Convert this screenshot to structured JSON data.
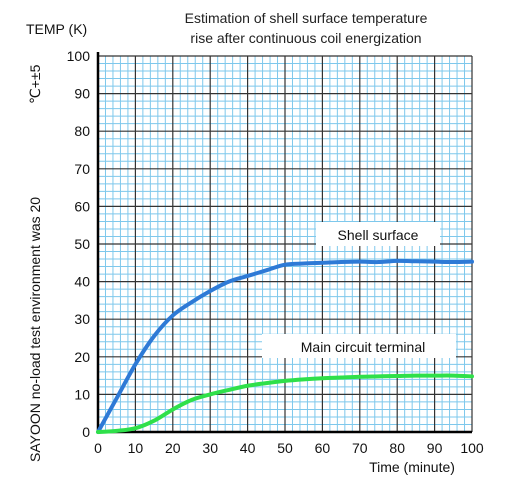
{
  "chart_data": {
    "type": "line",
    "title_lines": [
      "Estimation of shell surface temperature",
      "rise after continuous coil energization"
    ],
    "ylabel": "TEMP (K)",
    "xlabel": "Time (minute)",
    "side_note": "SAYOON no-load test environment was 20",
    "side_note_unit": "℃+±5",
    "xlim": [
      0,
      100
    ],
    "ylim": [
      0,
      100
    ],
    "x_ticks": [
      0,
      10,
      20,
      30,
      40,
      50,
      60,
      70,
      80,
      90,
      100
    ],
    "y_ticks": [
      0,
      10,
      20,
      30,
      40,
      50,
      60,
      70,
      80,
      90,
      100
    ],
    "grid": true,
    "colors": {
      "major_grid": "#333333",
      "minor_grid": "#7ec8ec",
      "shell": "#2e7ad6",
      "terminal": "#2fe04a"
    },
    "series": [
      {
        "name": "Shell surface",
        "x": [
          0,
          5,
          10,
          15,
          20,
          25,
          30,
          35,
          40,
          45,
          50,
          55,
          60,
          65,
          70,
          75,
          80,
          85,
          90,
          95,
          100
        ],
        "y": [
          0,
          9,
          18,
          25.5,
          31,
          34.5,
          37.5,
          40,
          41.5,
          43,
          44.5,
          44.8,
          45,
          45.2,
          45.3,
          45.2,
          45.5,
          45.4,
          45.3,
          45.2,
          45.3
        ]
      },
      {
        "name": "Main circuit terminal",
        "x": [
          0,
          5,
          10,
          15,
          20,
          25,
          30,
          35,
          40,
          45,
          50,
          55,
          60,
          65,
          70,
          75,
          80,
          85,
          90,
          95,
          100
        ],
        "y": [
          0,
          0.3,
          1,
          3,
          6,
          8.5,
          10,
          11.2,
          12.3,
          13,
          13.6,
          14,
          14.3,
          14.5,
          14.7,
          14.8,
          14.9,
          15,
          15,
          15,
          14.8
        ]
      }
    ],
    "annotations": [
      "Shell surface",
      "Main circuit terminal"
    ]
  }
}
